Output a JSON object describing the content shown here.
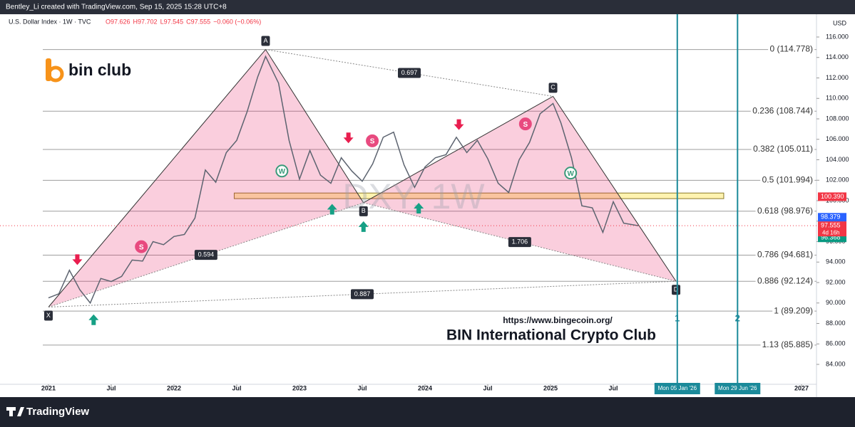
{
  "chart_data": {
    "type": "harmonic",
    "top_bar": "Bentley_Li created with TradingView.com, Sep 15, 2025 15:28 UTC+8",
    "symbol": "U.S. Dollar Index · 1W · TVC",
    "ohlc": [
      "O97.626",
      "H97.702",
      "L97.545",
      "C97.555",
      "−0.060 (−0.06%)"
    ],
    "watermark": "DXY, 1W",
    "logo": "bin club",
    "url": "https://www.bingecoin.org/",
    "club": "BIN International Crypto Club",
    "currency": "USD",
    "brand": "TradingView",
    "xlim": [
      2020.614,
      2027.119
    ],
    "ylim": [
      82.052,
      118.226
    ],
    "xticks": [
      {
        "value": 2021,
        "label": "2021"
      },
      {
        "value": 2021.5,
        "label": "Jul"
      },
      {
        "value": 2022,
        "label": "2022"
      },
      {
        "value": 2022.5,
        "label": "Jul"
      },
      {
        "value": 2023,
        "label": "2023"
      },
      {
        "value": 2023.5,
        "label": "Jul"
      },
      {
        "value": 2024,
        "label": "2024"
      },
      {
        "value": 2024.5,
        "label": "Jul"
      },
      {
        "value": 2025,
        "label": "2025"
      },
      {
        "value": 2025.5,
        "label": "Jul"
      },
      {
        "value": 2027,
        "label": "2027"
      }
    ],
    "yticks": [
      {
        "value": 84,
        "label": "84.000"
      },
      {
        "value": 86,
        "label": "86.000"
      },
      {
        "value": 88,
        "label": "88.000"
      },
      {
        "value": 90,
        "label": "90.000"
      },
      {
        "value": 92,
        "label": "92.000"
      },
      {
        "value": 94,
        "label": "94.000"
      },
      {
        "value": 96,
        "label": "96.000"
      },
      {
        "value": 98,
        "label": "98.000"
      },
      {
        "value": 100,
        "label": "100.000"
      },
      {
        "value": 102,
        "label": "102.000"
      },
      {
        "value": 104,
        "label": "104.000"
      },
      {
        "value": 106,
        "label": "106.000"
      },
      {
        "value": 108,
        "label": "108.000"
      },
      {
        "value": 110,
        "label": "110.000"
      },
      {
        "value": 112,
        "label": "112.000"
      },
      {
        "value": 114,
        "label": "114.000"
      },
      {
        "value": 116,
        "label": "116.000"
      }
    ],
    "fib_levels": [
      {
        "value": 114.778,
        "label": "0 (114.778)"
      },
      {
        "value": 108.744,
        "label": "0.236 (108.744)"
      },
      {
        "value": 105.011,
        "label": "0.382 (105.011)"
      },
      {
        "value": 101.994,
        "label": "0.5 (101.994)"
      },
      {
        "value": 98.976,
        "label": "0.618 (98.976)"
      },
      {
        "value": 94.681,
        "label": "0.786 (94.681)"
      },
      {
        "value": 92.124,
        "label": "0.886 (92.124)"
      },
      {
        "value": 89.209,
        "label": "1 (89.209)"
      },
      {
        "value": 85.885,
        "label": "1.13 (85.885)"
      }
    ],
    "series": [
      {
        "name": "DXY",
        "color": "#5d6470",
        "x": [
          2021.0,
          2021.083,
          2021.167,
          2021.25,
          2021.333,
          2021.417,
          2021.5,
          2021.583,
          2021.667,
          2021.75,
          2021.833,
          2021.917,
          2022.0,
          2022.083,
          2022.167,
          2022.25,
          2022.333,
          2022.417,
          2022.5,
          2022.583,
          2022.667,
          2022.73,
          2022.833,
          2022.917,
          2023.0,
          2023.083,
          2023.167,
          2023.25,
          2023.333,
          2023.417,
          2023.5,
          2023.583,
          2023.667,
          2023.75,
          2023.833,
          2023.917,
          2024.0,
          2024.083,
          2024.167,
          2024.25,
          2024.333,
          2024.417,
          2024.5,
          2024.583,
          2024.667,
          2024.75,
          2024.833,
          2024.917,
          2025.02,
          2025.083,
          2025.167,
          2025.25,
          2025.333,
          2025.417,
          2025.5,
          2025.583,
          2025.7
        ],
        "values": [
          90.5,
          90.9,
          93.2,
          91.3,
          90.0,
          92.4,
          92.1,
          92.6,
          94.2,
          94.1,
          96.0,
          95.7,
          96.5,
          96.7,
          98.3,
          103.0,
          101.8,
          104.7,
          105.9,
          108.7,
          112.1,
          114.1,
          111.5,
          105.9,
          102.1,
          104.9,
          102.5,
          101.7,
          104.2,
          102.9,
          101.9,
          103.6,
          106.2,
          106.7,
          103.5,
          101.3,
          103.3,
          104.2,
          104.5,
          106.2,
          104.7,
          105.9,
          104.1,
          101.7,
          100.8,
          104.0,
          105.7,
          108.5,
          109.5,
          107.6,
          104.2,
          99.5,
          99.3,
          96.9,
          99.9,
          97.8,
          97.555
        ]
      }
    ],
    "pattern": {
      "points": [
        "X",
        "A",
        "B",
        "C",
        "D"
      ],
      "x": [
        2021.0,
        2022.73,
        2023.51,
        2025.02,
        2026.0
      ],
      "y": [
        89.6,
        114.78,
        99.8,
        110.2,
        92.12
      ]
    },
    "ratios": [
      {
        "label": "0.594",
        "from": 0,
        "to": 2
      },
      {
        "label": "0.697",
        "from": 1,
        "to": 3
      },
      {
        "label": "1.706",
        "from": 2,
        "to": 4
      },
      {
        "label": "0.887",
        "from": 0,
        "to": 4
      }
    ],
    "zone": {
      "xlim": [
        2022.48,
        2026.38
      ],
      "ylim": [
        100.2,
        100.75
      ]
    },
    "markers": [
      {
        "x": 2026.01,
        "label": "1",
        "date": "Mon 05 Jan '26"
      },
      {
        "x": 2026.49,
        "label": "2",
        "date": "Mon 29 Jun '26"
      }
    ],
    "signals": [
      {
        "label": "S",
        "x": 2021.74,
        "y": 95.5,
        "color": "#e84a7f"
      },
      {
        "label": "S",
        "x": 2023.58,
        "y": 105.85,
        "color": "#e84a7f"
      },
      {
        "label": "S",
        "x": 2024.8,
        "y": 107.5,
        "color": "#e84a7f"
      },
      {
        "label": "W",
        "x": 2022.86,
        "y": 102.9,
        "color": "#3a9a7a"
      },
      {
        "label": "W",
        "x": 2025.16,
        "y": 102.7,
        "color": "#3a9a7a"
      }
    ],
    "arrows_down": {
      "color": "#e91e4f",
      "x": [
        2021.23,
        2023.39,
        2024.27
      ],
      "y": [
        94.2,
        106.1,
        107.4
      ]
    },
    "arrows_up": {
      "color": "#16a085",
      "x": [
        2021.36,
        2023.26,
        2023.51,
        2023.95
      ],
      "y": [
        88.4,
        99.2,
        97.5,
        99.3
      ]
    },
    "price_labels": [
      {
        "value": 100.39,
        "label": "100.390",
        "color": "#f23645"
      },
      {
        "value": 98.379,
        "label": "98.379",
        "color": "#2962ff"
      },
      {
        "value": 97.555,
        "label": "97.555",
        "color": "#f23645"
      },
      {
        "value": 96.368,
        "label": "96.368",
        "color": "#089981"
      }
    ],
    "countdown": "4d 16h",
    "last_price": 97.555
  }
}
